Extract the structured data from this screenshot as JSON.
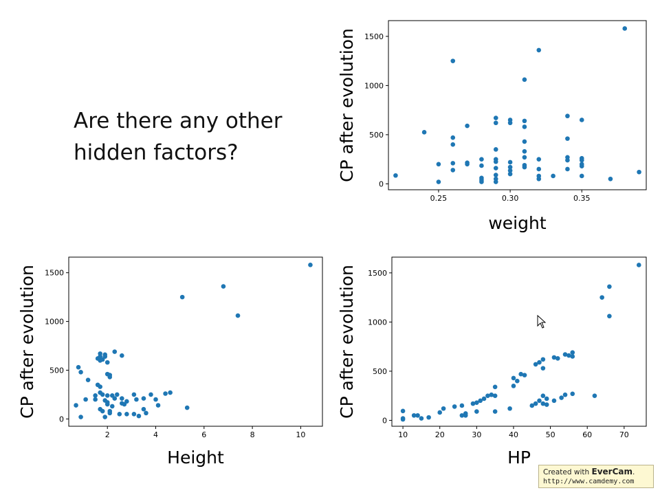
{
  "question": {
    "line1": "Are there any other",
    "line2": "hidden factors?"
  },
  "colors": {
    "point": "#1f77b4",
    "axis": "#000000"
  },
  "watermark": {
    "prefix": "Created with",
    "brand": "EverCam",
    "suffix": ".",
    "url": "http://www.camdemy.com"
  },
  "chart_data": [
    {
      "type": "scatter",
      "xlabel": "weight",
      "ylabel": "CP after evolution",
      "xlim": [
        0.215,
        0.395
      ],
      "ylim": [
        -60,
        1660
      ],
      "xticks": [
        0.25,
        0.3,
        0.35
      ],
      "xtick_labels": [
        "0.25",
        "0.30",
        "0.35"
      ],
      "yticks": [
        0,
        500,
        1000,
        1500
      ],
      "ytick_labels": [
        "0",
        "500",
        "1000",
        "1500"
      ],
      "points": [
        [
          0.22,
          85
        ],
        [
          0.24,
          525
        ],
        [
          0.25,
          200
        ],
        [
          0.25,
          20
        ],
        [
          0.26,
          1250
        ],
        [
          0.26,
          470
        ],
        [
          0.26,
          400
        ],
        [
          0.26,
          210
        ],
        [
          0.26,
          140
        ],
        [
          0.27,
          590
        ],
        [
          0.27,
          215
        ],
        [
          0.27,
          200
        ],
        [
          0.28,
          250
        ],
        [
          0.28,
          185
        ],
        [
          0.28,
          60
        ],
        [
          0.28,
          40
        ],
        [
          0.28,
          20
        ],
        [
          0.29,
          670
        ],
        [
          0.29,
          620
        ],
        [
          0.29,
          350
        ],
        [
          0.29,
          250
        ],
        [
          0.29,
          225
        ],
        [
          0.29,
          160
        ],
        [
          0.29,
          90
        ],
        [
          0.29,
          50
        ],
        [
          0.29,
          20
        ],
        [
          0.3,
          650
        ],
        [
          0.3,
          620
        ],
        [
          0.3,
          220
        ],
        [
          0.3,
          170
        ],
        [
          0.3,
          135
        ],
        [
          0.3,
          100
        ],
        [
          0.31,
          1060
        ],
        [
          0.31,
          640
        ],
        [
          0.31,
          580
        ],
        [
          0.31,
          430
        ],
        [
          0.31,
          330
        ],
        [
          0.31,
          270
        ],
        [
          0.31,
          190
        ],
        [
          0.31,
          170
        ],
        [
          0.32,
          1360
        ],
        [
          0.32,
          250
        ],
        [
          0.32,
          150
        ],
        [
          0.32,
          80
        ],
        [
          0.32,
          50
        ],
        [
          0.33,
          80
        ],
        [
          0.34,
          690
        ],
        [
          0.34,
          460
        ],
        [
          0.34,
          270
        ],
        [
          0.34,
          240
        ],
        [
          0.34,
          150
        ],
        [
          0.35,
          650
        ],
        [
          0.35,
          260
        ],
        [
          0.35,
          240
        ],
        [
          0.35,
          200
        ],
        [
          0.35,
          180
        ],
        [
          0.35,
          80
        ],
        [
          0.37,
          50
        ],
        [
          0.38,
          1580
        ],
        [
          0.39,
          120
        ]
      ]
    },
    {
      "type": "scatter",
      "xlabel": "Height",
      "ylabel": "CP after evolution",
      "xlim": [
        0.4,
        10.9
      ],
      "ylim": [
        -75,
        1660
      ],
      "xticks": [
        2,
        4,
        6,
        8,
        10
      ],
      "xtick_labels": [
        "2",
        "4",
        "6",
        "8",
        "10"
      ],
      "yticks": [
        0,
        500,
        1000,
        1500
      ],
      "ytick_labels": [
        "0",
        "500",
        "1000",
        "1500"
      ],
      "points": [
        [
          0.7,
          140
        ],
        [
          0.8,
          530
        ],
        [
          0.9,
          480
        ],
        [
          0.9,
          20
        ],
        [
          1.1,
          200
        ],
        [
          1.2,
          400
        ],
        [
          1.5,
          200
        ],
        [
          1.5,
          240
        ],
        [
          1.6,
          620
        ],
        [
          1.6,
          350
        ],
        [
          1.7,
          670
        ],
        [
          1.7,
          640
        ],
        [
          1.7,
          600
        ],
        [
          1.7,
          330
        ],
        [
          1.7,
          270
        ],
        [
          1.7,
          100
        ],
        [
          1.8,
          610
        ],
        [
          1.8,
          250
        ],
        [
          1.8,
          80
        ],
        [
          1.9,
          660
        ],
        [
          1.9,
          640
        ],
        [
          1.9,
          190
        ],
        [
          1.9,
          20
        ],
        [
          2.0,
          580
        ],
        [
          2.0,
          460
        ],
        [
          2.0,
          240
        ],
        [
          2.0,
          170
        ],
        [
          2.0,
          150
        ],
        [
          2.1,
          450
        ],
        [
          2.1,
          430
        ],
        [
          2.1,
          80
        ],
        [
          2.1,
          60
        ],
        [
          2.2,
          240
        ],
        [
          2.2,
          130
        ],
        [
          2.3,
          690
        ],
        [
          2.3,
          210
        ],
        [
          2.4,
          250
        ],
        [
          2.5,
          50
        ],
        [
          2.6,
          650
        ],
        [
          2.6,
          210
        ],
        [
          2.6,
          160
        ],
        [
          2.7,
          150
        ],
        [
          2.8,
          50
        ],
        [
          2.8,
          180
        ],
        [
          3.1,
          250
        ],
        [
          3.1,
          50
        ],
        [
          3.2,
          200
        ],
        [
          3.3,
          30
        ],
        [
          3.5,
          210
        ],
        [
          3.5,
          100
        ],
        [
          3.6,
          60
        ],
        [
          3.8,
          250
        ],
        [
          4.0,
          200
        ],
        [
          4.1,
          140
        ],
        [
          4.4,
          260
        ],
        [
          4.6,
          270
        ],
        [
          5.1,
          1250
        ],
        [
          5.3,
          115
        ],
        [
          6.8,
          1360
        ],
        [
          7.4,
          1060
        ],
        [
          10.4,
          1580
        ]
      ]
    },
    {
      "type": "scatter",
      "xlabel": "HP",
      "ylabel": "CP after evolution",
      "xlim": [
        7,
        76
      ],
      "ylim": [
        -60,
        1660
      ],
      "xticks": [
        10,
        20,
        30,
        40,
        50,
        60,
        70
      ],
      "xtick_labels": [
        "10",
        "20",
        "30",
        "40",
        "50",
        "60",
        "70"
      ],
      "yticks": [
        0,
        500,
        1000,
        1500
      ],
      "ytick_labels": [
        "0",
        "500",
        "1000",
        "1500"
      ],
      "points": [
        [
          10,
          95
        ],
        [
          10,
          20
        ],
        [
          10,
          10
        ],
        [
          13,
          50
        ],
        [
          14,
          50
        ],
        [
          15,
          20
        ],
        [
          17,
          30
        ],
        [
          20,
          80
        ],
        [
          21,
          120
        ],
        [
          24,
          140
        ],
        [
          26,
          150
        ],
        [
          26,
          50
        ],
        [
          27,
          50
        ],
        [
          27,
          70
        ],
        [
          29,
          170
        ],
        [
          30,
          180
        ],
        [
          30,
          90
        ],
        [
          31,
          200
        ],
        [
          32,
          220
        ],
        [
          33,
          250
        ],
        [
          34,
          260
        ],
        [
          35,
          340
        ],
        [
          35,
          250
        ],
        [
          35,
          90
        ],
        [
          39,
          120
        ],
        [
          40,
          430
        ],
        [
          40,
          350
        ],
        [
          41,
          400
        ],
        [
          42,
          470
        ],
        [
          43,
          460
        ],
        [
          45,
          150
        ],
        [
          46,
          570
        ],
        [
          46,
          170
        ],
        [
          47,
          590
        ],
        [
          47,
          200
        ],
        [
          48,
          620
        ],
        [
          48,
          530
        ],
        [
          48,
          250
        ],
        [
          48,
          170
        ],
        [
          49,
          220
        ],
        [
          49,
          160
        ],
        [
          51,
          640
        ],
        [
          51,
          200
        ],
        [
          52,
          630
        ],
        [
          53,
          230
        ],
        [
          54,
          670
        ],
        [
          54,
          260
        ],
        [
          55,
          660
        ],
        [
          56,
          690
        ],
        [
          56,
          650
        ],
        [
          56,
          270
        ],
        [
          62,
          250
        ],
        [
          64,
          1250
        ],
        [
          66,
          1360
        ],
        [
          66,
          1060
        ],
        [
          74,
          1580
        ]
      ]
    }
  ]
}
